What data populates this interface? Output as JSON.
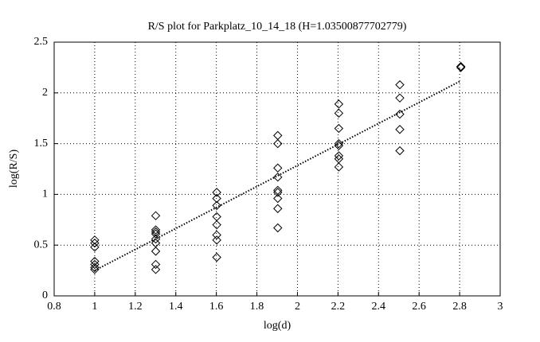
{
  "chart_data": {
    "type": "scatter",
    "title": "R/S plot for Parkplatz_10_14_18 (H=1.03500877702779)",
    "xlabel": "log(d)",
    "ylabel": "log(R/S)",
    "xlim": [
      0.8,
      3
    ],
    "ylim": [
      0,
      2.5
    ],
    "xticks": [
      0.8,
      1,
      1.2,
      1.4,
      1.6,
      1.8,
      2,
      2.2,
      2.4,
      2.6,
      2.8,
      3
    ],
    "yticks": [
      0,
      0.5,
      1,
      1.5,
      2,
      2.5
    ],
    "grid": true,
    "marker": "diamond",
    "series": [
      {
        "color": "#000000",
        "x": [
          1,
          1,
          1,
          1,
          1,
          1,
          1,
          1.301,
          1.301,
          1.301,
          1.301,
          1.301,
          1.301,
          1.301,
          1.301,
          1.301,
          1.602,
          1.602,
          1.602,
          1.602,
          1.602,
          1.602,
          1.602,
          1.602,
          1.903,
          1.903,
          1.903,
          1.903,
          1.903,
          1.903,
          1.903,
          1.903,
          1.903,
          2.204,
          2.204,
          2.204,
          2.204,
          2.204,
          2.204,
          2.204,
          2.204,
          2.505,
          2.505,
          2.505,
          2.505,
          2.505,
          2.806,
          2.806
        ],
        "values": [
          0.55,
          0.52,
          0.48,
          0.34,
          0.31,
          0.28,
          0.26,
          0.79,
          0.65,
          0.63,
          0.61,
          0.56,
          0.52,
          0.44,
          0.31,
          0.26,
          1.02,
          0.96,
          0.89,
          0.78,
          0.7,
          0.6,
          0.55,
          0.38,
          1.58,
          1.5,
          1.26,
          1.17,
          1.04,
          1.02,
          0.96,
          0.86,
          0.67,
          1.89,
          1.8,
          1.65,
          1.5,
          1.48,
          1.38,
          1.35,
          1.27,
          2.08,
          1.95,
          1.79,
          1.64,
          1.43,
          2.26,
          2.25
        ]
      }
    ],
    "fit_line": {
      "color": "#000000",
      "x": [
        1,
        2.806
      ],
      "values": [
        0.25,
        2.119
      ]
    }
  }
}
